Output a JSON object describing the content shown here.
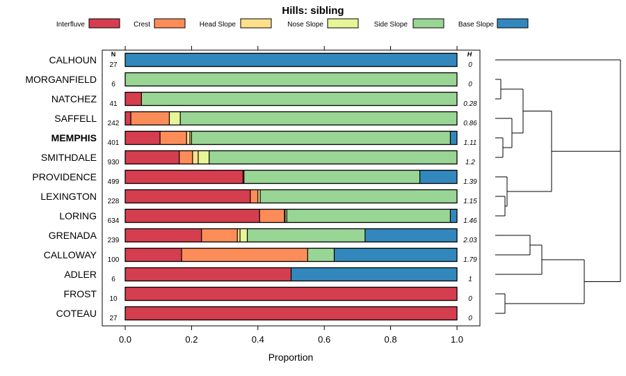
{
  "chart_data": {
    "type": "bar",
    "stacked": true,
    "orientation": "horizontal",
    "title": "Hills: sibling",
    "xlabel": "Proportion",
    "xlim": [
      0,
      1
    ],
    "x_ticks": [
      "0.0",
      "0.2",
      "0.4",
      "0.6",
      "0.8",
      "1.0"
    ],
    "n_header": "N",
    "h_header": "H",
    "legend": [
      {
        "name": "Interfluve",
        "color": "#D53E4F"
      },
      {
        "name": "Crest",
        "color": "#FC8D59"
      },
      {
        "name": "Head Slope",
        "color": "#FEE08B"
      },
      {
        "name": "Nose Slope",
        "color": "#E6F598"
      },
      {
        "name": "Side Slope",
        "color": "#99D594"
      },
      {
        "name": "Base Slope",
        "color": "#3288BD"
      }
    ],
    "rows": [
      {
        "name": "CALHOUN",
        "n": "27",
        "h": "0",
        "bold": false,
        "values": [
          0,
          0,
          0,
          0,
          0,
          1.0
        ]
      },
      {
        "name": "MORGANFIELD",
        "n": "6",
        "h": "0",
        "bold": false,
        "values": [
          0,
          0,
          0,
          0,
          1.0,
          0
        ]
      },
      {
        "name": "NATCHEZ",
        "n": "41",
        "h": "0.28",
        "bold": false,
        "values": [
          0.049,
          0,
          0,
          0,
          0.951,
          0
        ]
      },
      {
        "name": "SAFFELL",
        "n": "242",
        "h": "0.86",
        "bold": false,
        "values": [
          0.017,
          0.116,
          0,
          0.033,
          0.834,
          0
        ]
      },
      {
        "name": "MEMPHIS",
        "n": "401",
        "h": "1.11",
        "bold": true,
        "values": [
          0.105,
          0.08,
          0.01,
          0.005,
          0.78,
          0.02
        ]
      },
      {
        "name": "SMITHDALE",
        "n": "930",
        "h": "1.2",
        "bold": false,
        "values": [
          0.163,
          0.04,
          0.017,
          0.033,
          0.747,
          0
        ]
      },
      {
        "name": "PROVIDENCE",
        "n": "499",
        "h": "1.39",
        "bold": false,
        "values": [
          0.355,
          0.003,
          0,
          0,
          0.53,
          0.112
        ]
      },
      {
        "name": "LEXINGTON",
        "n": "228",
        "h": "1.15",
        "bold": false,
        "values": [
          0.377,
          0.023,
          0.007,
          0,
          0.593,
          0
        ]
      },
      {
        "name": "LORING",
        "n": "634",
        "h": "1.46",
        "bold": false,
        "values": [
          0.405,
          0.075,
          0.002,
          0.005,
          0.493,
          0.02
        ]
      },
      {
        "name": "GRENADA",
        "n": "239",
        "h": "2.03",
        "bold": false,
        "values": [
          0.23,
          0.108,
          0.008,
          0.022,
          0.355,
          0.277
        ]
      },
      {
        "name": "CALLOWAY",
        "n": "100",
        "h": "1.79",
        "bold": false,
        "values": [
          0.17,
          0.38,
          0,
          0,
          0.08,
          0.37
        ]
      },
      {
        "name": "ADLER",
        "n": "6",
        "h": "1",
        "bold": false,
        "values": [
          0.5,
          0,
          0,
          0,
          0,
          0.5
        ]
      },
      {
        "name": "FROST",
        "n": "10",
        "h": "0",
        "bold": false,
        "values": [
          1.0,
          0,
          0,
          0,
          0,
          0
        ]
      },
      {
        "name": "COTEAU",
        "n": "27",
        "h": "0",
        "bold": false,
        "values": [
          1.0,
          0,
          0,
          0,
          0,
          0
        ]
      }
    ]
  }
}
